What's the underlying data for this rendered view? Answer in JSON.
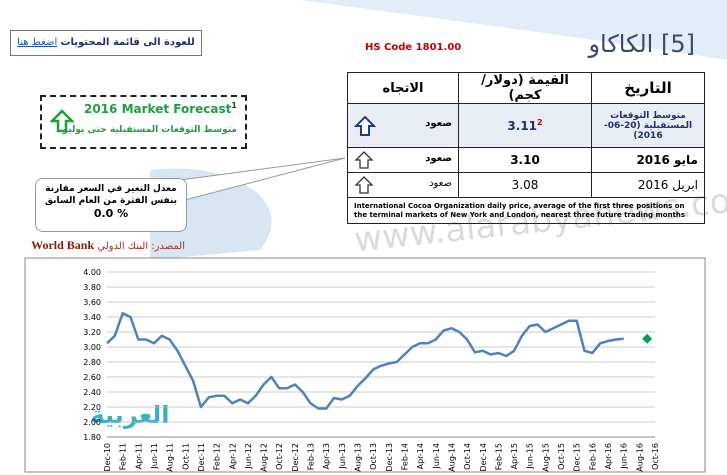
{
  "header": {
    "back_text": "للعودة الى قائمة المحتويات",
    "back_link": "اضغط هنا",
    "hs_code": "HS Code 1801.00",
    "title": "[5] الكاكاو"
  },
  "table": {
    "columns": [
      "التاريخ",
      "القيمة (دولار/كجم)",
      "الاتجاه"
    ],
    "rows": [
      {
        "date": "متوسط التوقعات المستقبلية (20-06-2016)",
        "value": "3.11",
        "note": "2",
        "trend": "صعود"
      },
      {
        "date": "مايو 2016",
        "value": "3.10",
        "trend": "صعود"
      },
      {
        "date": "ابريل 2016",
        "value": "3.08",
        "trend": "صعود"
      }
    ],
    "footnote": "International Cocoa Organization daily price, average of the first three positions on the terminal markets of New York and London, nearest three future trading months"
  },
  "forecast": {
    "title": "2016 Market Forecast",
    "note": "1",
    "subtitle": "متوسط التوقعات المستقبلية حتى يوليو"
  },
  "callout": {
    "text": "معدل التغير في السعر مقارنة بنفس الفترة من العام السابق",
    "value": "0.0 %"
  },
  "source": {
    "label": "المصدر: البنك الدولي",
    "name": "World Bank"
  },
  "watermark": "www.alarabyanews.com",
  "logo": "العربية",
  "chart_data": {
    "type": "line",
    "categories": [
      "Dec-10",
      null,
      "Feb-11",
      null,
      "Apr-11",
      null,
      "Jun-11",
      null,
      "Aug-11",
      null,
      "Oct-11",
      null,
      "Dec-11",
      null,
      "Feb-12",
      null,
      "Apr-12",
      null,
      "Jun-12",
      null,
      "Aug-12",
      null,
      "Oct-12",
      null,
      "Dec-12",
      null,
      "Feb-13",
      null,
      "Apr-13",
      null,
      "Jun-13",
      null,
      "Aug-13",
      null,
      "Oct-13",
      null,
      "Dec-13",
      null,
      "Feb-14",
      null,
      "Apr-14",
      null,
      "Jun-14",
      null,
      "Aug-14",
      null,
      "Oct-14",
      null,
      "Dec-14",
      null,
      "Feb-15",
      null,
      "Apr-15",
      null,
      "Jun-15",
      null,
      "Aug-15",
      null,
      "Oct-15",
      null,
      "Dec-15",
      null,
      "Feb-16",
      null,
      "Apr-16",
      null,
      "Jun-16",
      null,
      "Aug-16",
      null,
      "Oct-16"
    ],
    "series": [
      {
        "color": "#4f81bd",
        "style": "line",
        "values": [
          3.05,
          3.15,
          3.45,
          3.4,
          3.1,
          3.1,
          3.05,
          3.15,
          3.1,
          2.95,
          2.75,
          2.55,
          2.2,
          2.33,
          2.35,
          2.35,
          2.25,
          2.3,
          2.25,
          2.35,
          2.5,
          2.6,
          2.45,
          2.45,
          2.5,
          2.4,
          2.25,
          2.18,
          2.18,
          2.32,
          2.3,
          2.35,
          2.48,
          2.58,
          2.7,
          2.75,
          2.78,
          2.8,
          2.9,
          3.0,
          3.05,
          3.05,
          3.1,
          3.22,
          3.25,
          3.2,
          3.1,
          2.93,
          2.95,
          2.9,
          2.92,
          2.88,
          2.95,
          3.15,
          3.28,
          3.3,
          3.2,
          3.25,
          3.3,
          3.35,
          3.35,
          2.95,
          2.92,
          3.05,
          3.08,
          3.1,
          3.11,
          null,
          null,
          null,
          null
        ]
      },
      {
        "color": "#00a050",
        "style": "marker",
        "values": [
          null,
          null,
          null,
          null,
          null,
          null,
          null,
          null,
          null,
          null,
          null,
          null,
          null,
          null,
          null,
          null,
          null,
          null,
          null,
          null,
          null,
          null,
          null,
          null,
          null,
          null,
          null,
          null,
          null,
          null,
          null,
          null,
          null,
          null,
          null,
          null,
          null,
          null,
          null,
          null,
          null,
          null,
          null,
          null,
          null,
          null,
          null,
          null,
          null,
          null,
          null,
          null,
          null,
          null,
          null,
          null,
          null,
          null,
          null,
          null,
          null,
          null,
          null,
          null,
          null,
          null,
          null,
          null,
          null,
          3.11,
          null
        ]
      }
    ],
    "ylim": [
      1.8,
      4.0
    ],
    "yticks": [
      {
        "value": 1.8,
        "label": "1.80"
      },
      {
        "value": 2.0,
        "label": "2.00"
      },
      {
        "value": 2.2,
        "label": "2.20"
      },
      {
        "value": 2.4,
        "label": "2.40"
      },
      {
        "value": 2.6,
        "label": "2.60"
      },
      {
        "value": 2.8,
        "label": "2.80"
      },
      {
        "value": 3.0,
        "label": "3.00"
      },
      {
        "value": 3.2,
        "label": "3.20"
      },
      {
        "value": 3.4,
        "label": "3.40"
      },
      {
        "value": 3.6,
        "label": "3.60"
      },
      {
        "value": 3.8,
        "label": "3.80"
      },
      {
        "value": 4.0,
        "label": "4.00"
      }
    ],
    "grid": true
  }
}
